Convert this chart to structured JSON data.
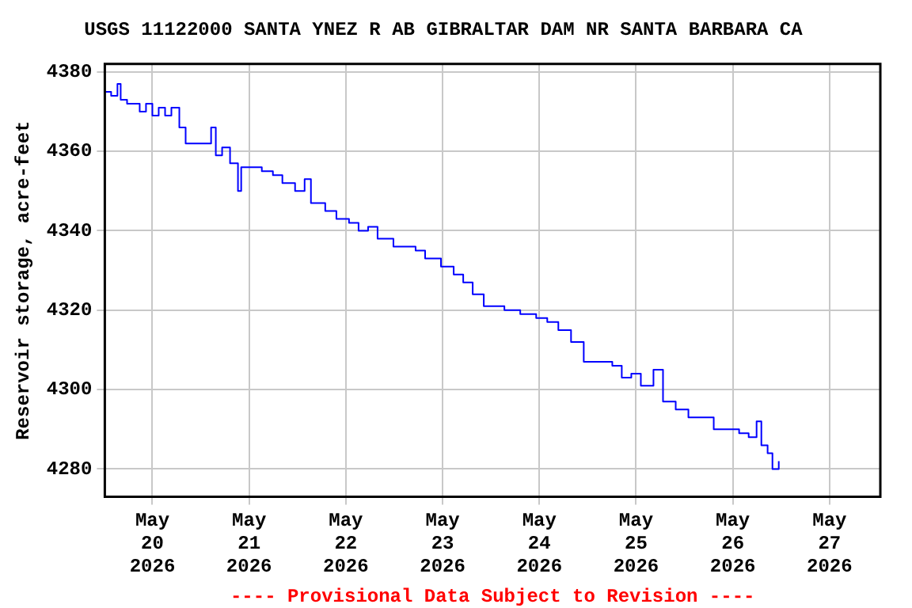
{
  "chart_data": {
    "type": "step",
    "title": "USGS 11122000 SANTA YNEZ R AB GIBRALTAR DAM NR SANTA BARBARA CA",
    "ylabel": "Reservoir storage, acre-feet",
    "annotations": [
      "---- Provisional Data Subject to Revision ----"
    ],
    "x": [
      "2026-05-19T12:12",
      "2026-05-19T13:46",
      "2026-05-19T15:20",
      "2026-05-19T16:08",
      "2026-05-19T17:43",
      "2026-05-19T20:51",
      "2026-05-19T22:25",
      "2026-05-20T00:00",
      "2026-05-20T01:34",
      "2026-05-20T03:09",
      "2026-05-20T04:43",
      "2026-05-20T06:41",
      "2026-05-20T08:15",
      "2026-05-20T13:22",
      "2026-05-20T14:34",
      "2026-05-20T15:44",
      "2026-05-20T17:18",
      "2026-05-20T19:16",
      "2026-05-20T21:14",
      "2026-05-20T22:02",
      "2026-05-21T03:09",
      "2026-05-21T05:54",
      "2026-05-21T08:15",
      "2026-05-21T11:24",
      "2026-05-21T13:46",
      "2026-05-21T15:20",
      "2026-05-21T18:53",
      "2026-05-21T21:39",
      "2026-05-22T00:47",
      "2026-05-22T03:09",
      "2026-05-22T05:31",
      "2026-05-22T07:52",
      "2026-05-22T11:48",
      "2026-05-22T15:44",
      "2026-05-22T17:18",
      "2026-05-22T19:40",
      "2026-05-22T23:36",
      "2026-05-23T02:45",
      "2026-05-23T05:07",
      "2026-05-23T07:28",
      "2026-05-23T10:13",
      "2026-05-23T15:20",
      "2026-05-23T19:16",
      "2026-05-23T23:13",
      "2026-05-24T01:58",
      "2026-05-24T04:43",
      "2026-05-24T07:52",
      "2026-05-24T11:01",
      "2026-05-24T18:06",
      "2026-05-24T20:27",
      "2026-05-24T22:49",
      "2026-05-25T01:11",
      "2026-05-25T04:19",
      "2026-05-25T06:41",
      "2026-05-25T09:50",
      "2026-05-25T12:59",
      "2026-05-25T17:43",
      "2026-05-25T19:16",
      "2026-05-25T22:25",
      "2026-05-26T01:34",
      "2026-05-26T03:56",
      "2026-05-26T05:54",
      "2026-05-26T07:05",
      "2026-05-26T08:38",
      "2026-05-26T09:50",
      "2026-05-26T11:24"
    ],
    "series": [
      {
        "color": "#0000ff",
        "values": [
          4375,
          4374,
          4377,
          4373,
          4372,
          4370,
          4372,
          4369,
          4371,
          4369,
          4371,
          4366,
          4362,
          4362,
          4366,
          4359,
          4361,
          4357,
          4350,
          4356,
          4355,
          4354,
          4352,
          4350,
          4353,
          4347,
          4345,
          4343,
          4342,
          4340,
          4341,
          4338,
          4336,
          4336,
          4335,
          4333,
          4331,
          4329,
          4327,
          4324,
          4321,
          4320,
          4319,
          4318,
          4317,
          4315,
          4312,
          4307,
          4306,
          4303,
          4304,
          4301,
          4305,
          4297,
          4295,
          4293,
          4293,
          4290,
          4290,
          4289,
          4288,
          4292,
          4286,
          4284,
          4280,
          4282
        ]
      }
    ],
    "xlim": [
      "2026-05-19T12:12",
      "2026-05-27T12:36"
    ],
    "xticks": [
      {
        "value": "2026-05-20",
        "label": "May\n20\n2026"
      },
      {
        "value": "2026-05-21",
        "label": "May\n21\n2026"
      },
      {
        "value": "2026-05-22",
        "label": "May\n22\n2026"
      },
      {
        "value": "2026-05-23",
        "label": "May\n23\n2026"
      },
      {
        "value": "2026-05-24",
        "label": "May\n24\n2026"
      },
      {
        "value": "2026-05-25",
        "label": "May\n25\n2026"
      },
      {
        "value": "2026-05-26",
        "label": "May\n26\n2026"
      },
      {
        "value": "2026-05-27",
        "label": "May\n27\n2026"
      }
    ],
    "ylim": [
      4273,
      4382
    ],
    "yticks": [
      4280,
      4300,
      4320,
      4340,
      4360,
      4380
    ],
    "grid": true,
    "legend": false,
    "line_style": "solid",
    "marker": "none"
  }
}
